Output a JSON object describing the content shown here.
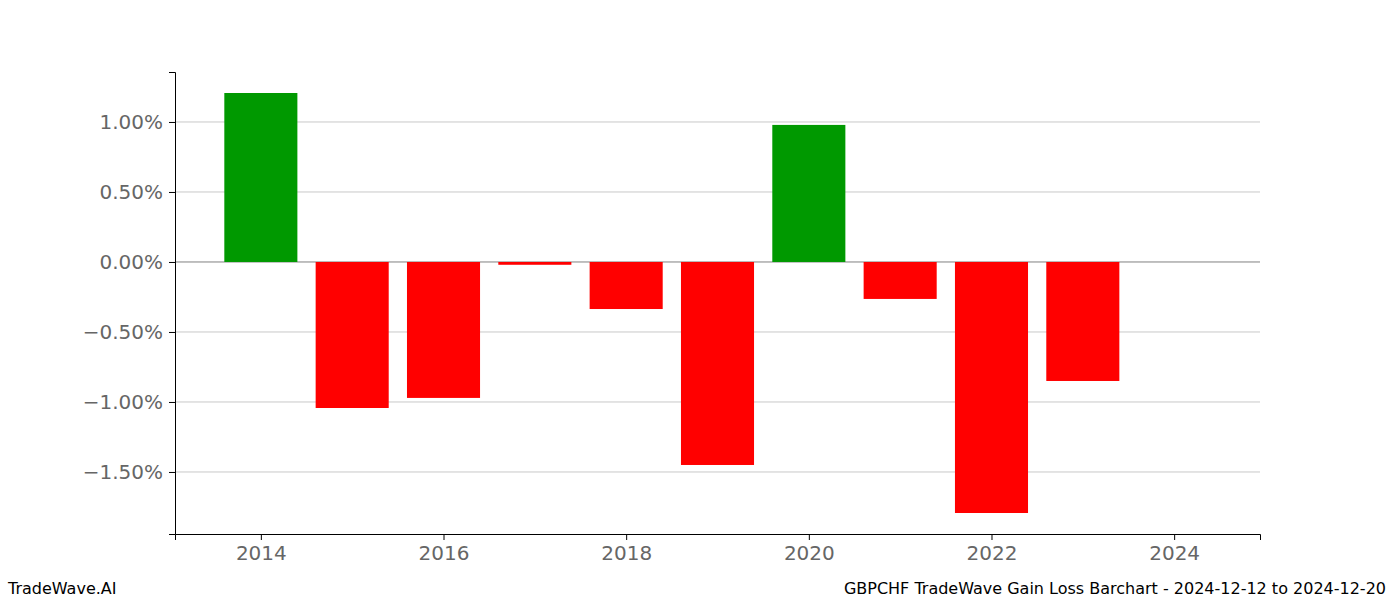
{
  "chart_data": {
    "type": "bar",
    "title": "GBPCHF TradeWave Gain Loss Barchart - 2024-12-12 to 2024-12-20",
    "annotations": [
      "TradeWave.AI"
    ],
    "x": [
      2014,
      2015,
      2016,
      2017,
      2018,
      2019,
      2020,
      2021,
      2022,
      2023,
      2024
    ],
    "values": [
      1.207,
      -1.043,
      -0.971,
      -0.02,
      -0.336,
      -1.45,
      0.979,
      -0.264,
      -1.793,
      -0.85,
      0
    ],
    "colors": [
      "#009900",
      "#ff0000",
      "#ff0000",
      "#ff0000",
      "#ff0000",
      "#ff0000",
      "#009900",
      "#ff0000",
      "#ff0000",
      "#ff0000",
      "#ff0000"
    ],
    "xlim": [
      2013.06,
      2024.94
    ],
    "xticks": [
      2014,
      2016,
      2018,
      2020,
      2022,
      2024
    ],
    "ylim": [
      -1.943,
      1.357
    ],
    "yticks": [
      {
        "value": -1.5,
        "label": "−1.50%"
      },
      {
        "value": -1.0,
        "label": "−1.00%"
      },
      {
        "value": -0.5,
        "label": "−0.50%"
      },
      {
        "value": 0,
        "label": "0.00%"
      },
      {
        "value": 0.5,
        "label": "0.50%"
      },
      {
        "value": 1.0,
        "label": "1.00%"
      }
    ],
    "grid": true
  }
}
